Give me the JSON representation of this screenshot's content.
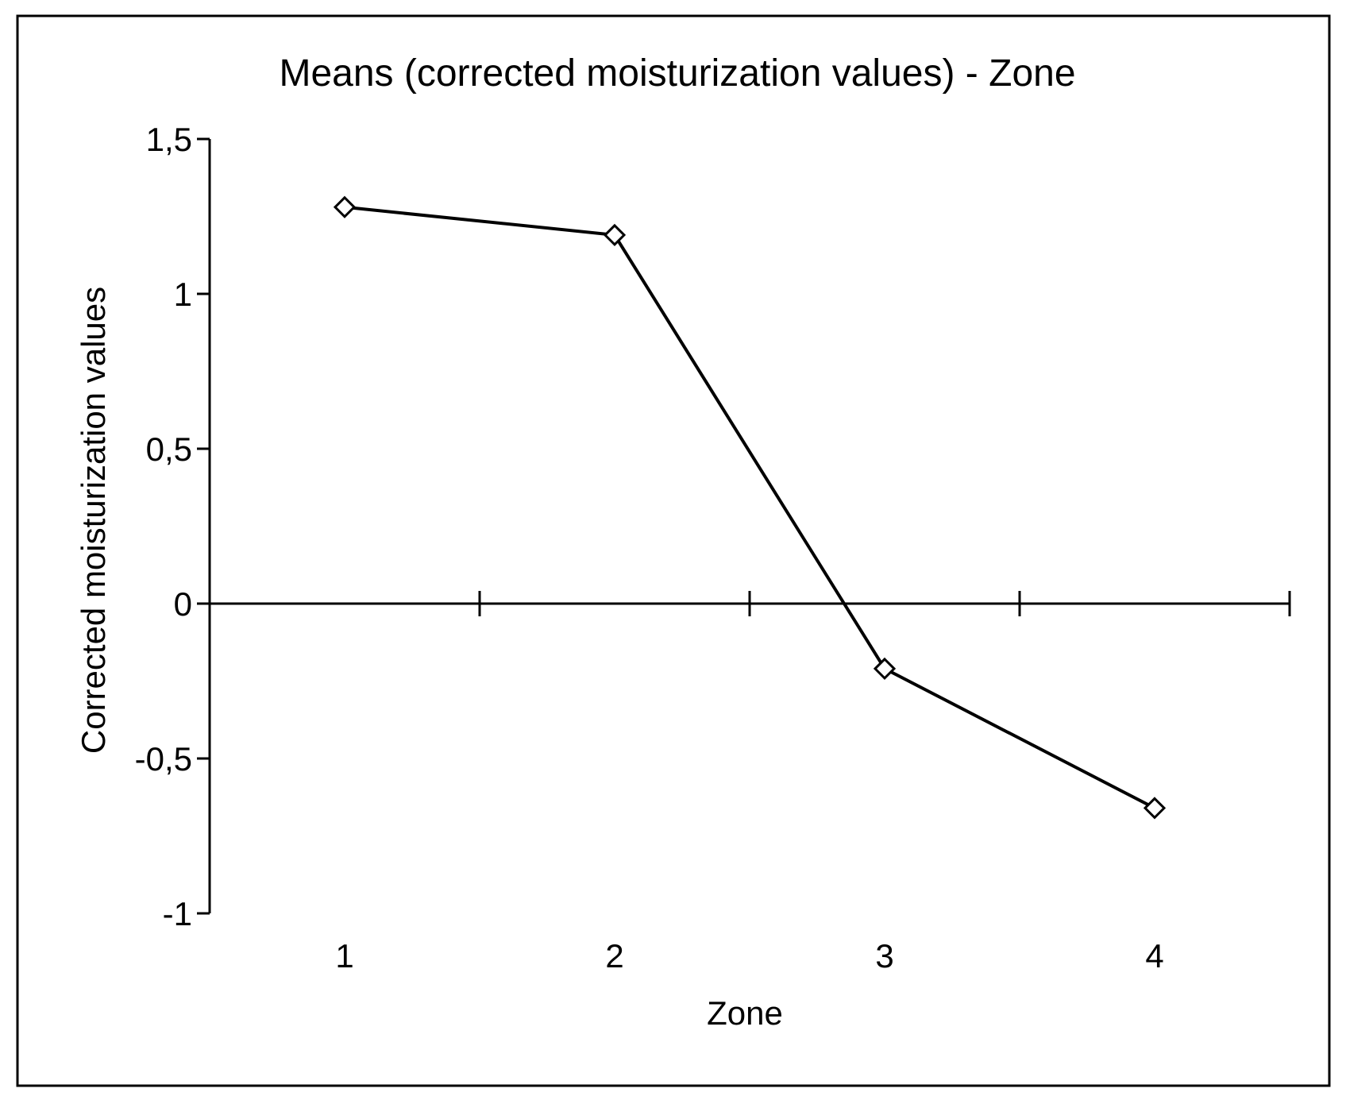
{
  "chart_data": {
    "type": "line",
    "title": "Means (corrected moisturization values) - Zone",
    "xlabel": "Zone",
    "ylabel": "Corrected moisturization values",
    "categories": [
      "1",
      "2",
      "3",
      "4"
    ],
    "series": [
      {
        "values": [
          1.28,
          1.19,
          -0.21,
          -0.66
        ],
        "marker": "diamond",
        "color": "#000000"
      }
    ],
    "ylim": [
      -1,
      1.5
    ],
    "yticks": [
      {
        "value": 1.5,
        "label": "1,5"
      },
      {
        "value": 1,
        "label": "1"
      },
      {
        "value": 0.5,
        "label": "0,5"
      },
      {
        "value": 0,
        "label": "0"
      },
      {
        "value": -0.5,
        "label": "-0,5"
      },
      {
        "value": -1,
        "label": "-1"
      }
    ],
    "grid": false,
    "legend": "none",
    "frame": true
  }
}
